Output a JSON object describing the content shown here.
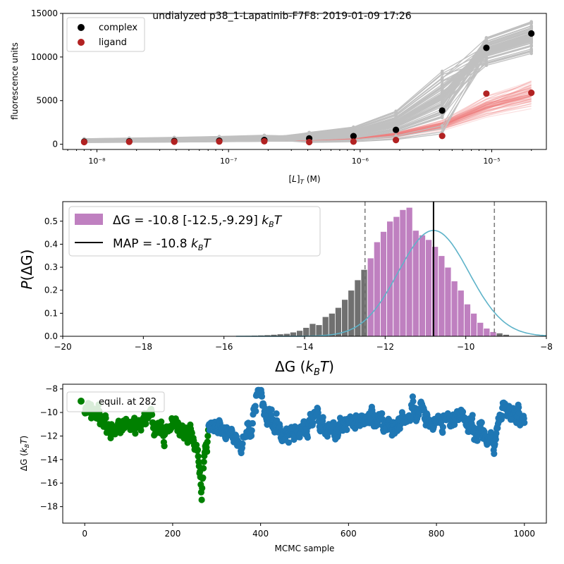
{
  "figure": {
    "suptitle": "undialyzed p38_1-Lapatinib-F7F8: 2019-01-09 17:26"
  },
  "chart_data": [
    {
      "type": "scatter",
      "panel": "titration",
      "title": "",
      "xlabel": "[L]_T (M)",
      "ylabel": "fluorescence units",
      "xscale": "log",
      "xlim": [
        5.5e-09,
        2.6e-05
      ],
      "ylim": [
        -600,
        15000
      ],
      "x_ticks": [
        1e-08,
        1e-07,
        1e-06,
        1e-05
      ],
      "x_tick_labels": [
        "10⁻⁸",
        "10⁻⁷",
        "10⁻⁶",
        "10⁻⁵"
      ],
      "y_ticks": [
        0,
        5000,
        10000,
        15000
      ],
      "y_tick_labels": [
        "0",
        "5000",
        "10000",
        "15000"
      ],
      "legend": {
        "placement": "top-left",
        "entries": [
          "complex",
          "ligand"
        ]
      },
      "concentrations": [
        8e-09,
        1.76e-08,
        3.87e-08,
        8.5e-08,
        1.87e-07,
        4.1e-07,
        8.9e-07,
        1.87e-06,
        4.2e-06,
        9.1e-06,
        2e-05
      ],
      "series": [
        {
          "name": "complex",
          "color": "#000000",
          "values": [
            300,
            330,
            370,
            400,
            480,
            660,
            930,
            1650,
            3850,
            11050,
            12700
          ]
        },
        {
          "name": "ligand",
          "color": "#b22222",
          "values": [
            250,
            270,
            290,
            310,
            340,
            250,
            300,
            480,
            950,
            5800,
            5900
          ]
        }
      ],
      "posterior_complex_model": {
        "color": "#c0c0c0",
        "typical": [
          420,
          470,
          520,
          590,
          680,
          860,
          1250,
          2400,
          5300,
          10700,
          12300
        ]
      },
      "posterior_ligand_model": {
        "color": "#f08080",
        "typical": [
          390,
          410,
          420,
          440,
          460,
          520,
          700,
          1100,
          2200,
          4300,
          5800
        ]
      }
    },
    {
      "type": "bar",
      "panel": "posterior",
      "xlabel": "ΔG (k_B T)",
      "ylabel": "P(ΔG)",
      "xlim": [
        -20,
        -8
      ],
      "ylim": [
        0,
        0.585
      ],
      "x_ticks": [
        -20,
        -18,
        -16,
        -14,
        -12,
        -10,
        -8
      ],
      "x_tick_labels": [
        "−20",
        "−18",
        "−16",
        "−14",
        "−12",
        "−10",
        "−8"
      ],
      "y_ticks": [
        0,
        0.1,
        0.2,
        0.3,
        0.4,
        0.5
      ],
      "y_tick_labels": [
        "0.0",
        "0.1",
        "0.2",
        "0.3",
        "0.4",
        "0.5"
      ],
      "legend": {
        "placement": "top-left",
        "entries": [
          "ΔG =  -10.8 [-12.5,-9.29] k_B T",
          "MAP = -10.8 k_B T"
        ]
      },
      "legend_display": {
        "hist_prefix": "ΔG =  -10.8 [-12.5,-9.29] ",
        "map_prefix": "MAP = -10.8 ",
        "unit_k": "k",
        "unit_sub": "B",
        "unit_T": "T"
      },
      "bin_edges_start": -15.8,
      "bin_width": 0.16,
      "bin_values": [
        0.002,
        0.002,
        0.003,
        0.004,
        0.005,
        0.006,
        0.008,
        0.01,
        0.012,
        0.018,
        0.025,
        0.038,
        0.055,
        0.05,
        0.085,
        0.1,
        0.125,
        0.16,
        0.2,
        0.245,
        0.29,
        0.34,
        0.41,
        0.455,
        0.5,
        0.52,
        0.55,
        0.56,
        0.46,
        0.44,
        0.42,
        0.39,
        0.35,
        0.3,
        0.24,
        0.2,
        0.14,
        0.1,
        0.06,
        0.035,
        0.02,
        0.014,
        0.008
      ],
      "credible_interval": [
        -12.5,
        -9.29
      ],
      "map": -10.8,
      "fit_mean": -10.8,
      "fit_sd": 0.875,
      "fit_peak": 0.46,
      "fit_xrange": [
        -15.7,
        -8
      ],
      "colors": {
        "inside": "#bf80c0",
        "outside": "#707070",
        "fit": "#5eb3c9",
        "map": "#000000",
        "ci": "#808080"
      }
    },
    {
      "type": "scatter",
      "panel": "trace",
      "xlabel": "MCMC sample",
      "ylabel": "ΔG (k_B T)",
      "xlim": [
        -50,
        1050
      ],
      "ylim": [
        -19.4,
        -7.6
      ],
      "x_ticks": [
        0,
        200,
        400,
        600,
        800,
        1000
      ],
      "x_tick_labels": [
        "0",
        "200",
        "400",
        "600",
        "800",
        "1000"
      ],
      "y_ticks": [
        -18,
        -16,
        -14,
        -12,
        -10,
        -8
      ],
      "y_tick_labels": [
        "−18",
        "−16",
        "−14",
        "−12",
        "−10",
        "−8"
      ],
      "legend": {
        "placement": "top-left",
        "entries": [
          "equil. at 282"
        ]
      },
      "equilibration_sample": 282,
      "n_samples": 1000,
      "colors": {
        "burn_in": "#008000",
        "production": "#1f77b4"
      },
      "trace_keypoints": [
        [
          0,
          -10.5
        ],
        [
          20,
          -10.0
        ],
        [
          40,
          -10.6
        ],
        [
          60,
          -11.5
        ],
        [
          80,
          -11.0
        ],
        [
          100,
          -10.8
        ],
        [
          120,
          -11.4
        ],
        [
          150,
          -10.3
        ],
        [
          170,
          -11.8
        ],
        [
          200,
          -11.2
        ],
        [
          220,
          -12.0
        ],
        [
          240,
          -11.5
        ],
        [
          255,
          -12.6
        ],
        [
          262,
          -14.5
        ],
        [
          266,
          -18.0
        ],
        [
          272,
          -14.0
        ],
        [
          282,
          -11.4
        ],
        [
          300,
          -10.8
        ],
        [
          330,
          -11.0
        ],
        [
          355,
          -13.5
        ],
        [
          380,
          -10.5
        ],
        [
          400,
          -9.0
        ],
        [
          430,
          -10.8
        ],
        [
          470,
          -11.8
        ],
        [
          520,
          -10.8
        ],
        [
          560,
          -11.2
        ],
        [
          600,
          -11.0
        ],
        [
          660,
          -10.5
        ],
        [
          700,
          -11.2
        ],
        [
          760,
          -9.8
        ],
        [
          800,
          -11.0
        ],
        [
          850,
          -10.2
        ],
        [
          900,
          -11.5
        ],
        [
          930,
          -13.0
        ],
        [
          950,
          -9.5
        ],
        [
          1000,
          -10.8
        ]
      ]
    }
  ]
}
